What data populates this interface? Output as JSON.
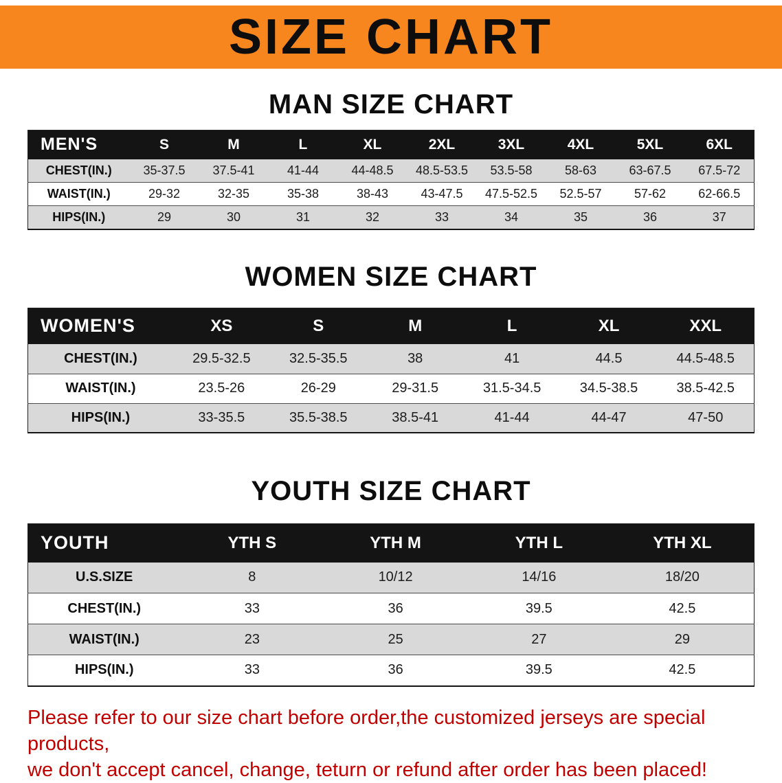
{
  "banner": {
    "title": "SIZE CHART"
  },
  "sections": [
    {
      "heading": "MAN SIZE CHART",
      "table": {
        "name": "mens-size-table",
        "header": [
          "MEN'S",
          "S",
          "M",
          "L",
          "XL",
          "2XL",
          "3XL",
          "4XL",
          "5XL",
          "6XL"
        ],
        "rows": [
          [
            "CHEST(IN.)",
            "35-37.5",
            "37.5-41",
            "41-44",
            "44-48.5",
            "48.5-53.5",
            "53.5-58",
            "58-63",
            "63-67.5",
            "67.5-72"
          ],
          [
            "WAIST(IN.)",
            "29-32",
            "32-35",
            "35-38",
            "38-43",
            "43-47.5",
            "47.5-52.5",
            "52.5-57",
            "57-62",
            "62-66.5"
          ],
          [
            "HIPS(IN.)",
            "29",
            "30",
            "31",
            "32",
            "33",
            "34",
            "35",
            "36",
            "37"
          ]
        ]
      }
    },
    {
      "heading": "WOMEN SIZE CHART",
      "table": {
        "name": "womens-size-table",
        "header": [
          "WOMEN'S",
          "XS",
          "S",
          "M",
          "L",
          "XL",
          "XXL"
        ],
        "rows": [
          [
            "CHEST(IN.)",
            "29.5-32.5",
            "32.5-35.5",
            "38",
            "41",
            "44.5",
            "44.5-48.5"
          ],
          [
            "WAIST(IN.)",
            "23.5-26",
            "26-29",
            "29-31.5",
            "31.5-34.5",
            "34.5-38.5",
            "38.5-42.5"
          ],
          [
            "HIPS(IN.)",
            "33-35.5",
            "35.5-38.5",
            "38.5-41",
            "41-44",
            "44-47",
            "47-50"
          ]
        ]
      }
    },
    {
      "heading": "YOUTH SIZE CHART",
      "table": {
        "name": "youth-size-table",
        "header": [
          "YOUTH",
          "YTH S",
          "YTH M",
          "YTH L",
          "YTH XL"
        ],
        "rows": [
          [
            "U.S.SIZE",
            "8",
            "10/12",
            "14/16",
            "18/20"
          ],
          [
            "CHEST(IN.)",
            "33",
            "36",
            "39.5",
            "42.5"
          ],
          [
            "WAIST(IN.)",
            "23",
            "25",
            "27",
            "29"
          ],
          [
            "HIPS(IN.)",
            "33",
            "36",
            "39.5",
            "42.5"
          ]
        ]
      }
    }
  ],
  "disclaimer": {
    "line1": "Please refer to our size chart before order,the customized jerseys are special products,",
    "line2": "we don't accept cancel, change, teturn or refund after order has been placed!"
  },
  "colors": {
    "banner_bg": "#f6861d",
    "table_header_bg": "#141414",
    "row_alt_bg": "#d9d9d9",
    "disclaimer_color": "#c10000"
  }
}
